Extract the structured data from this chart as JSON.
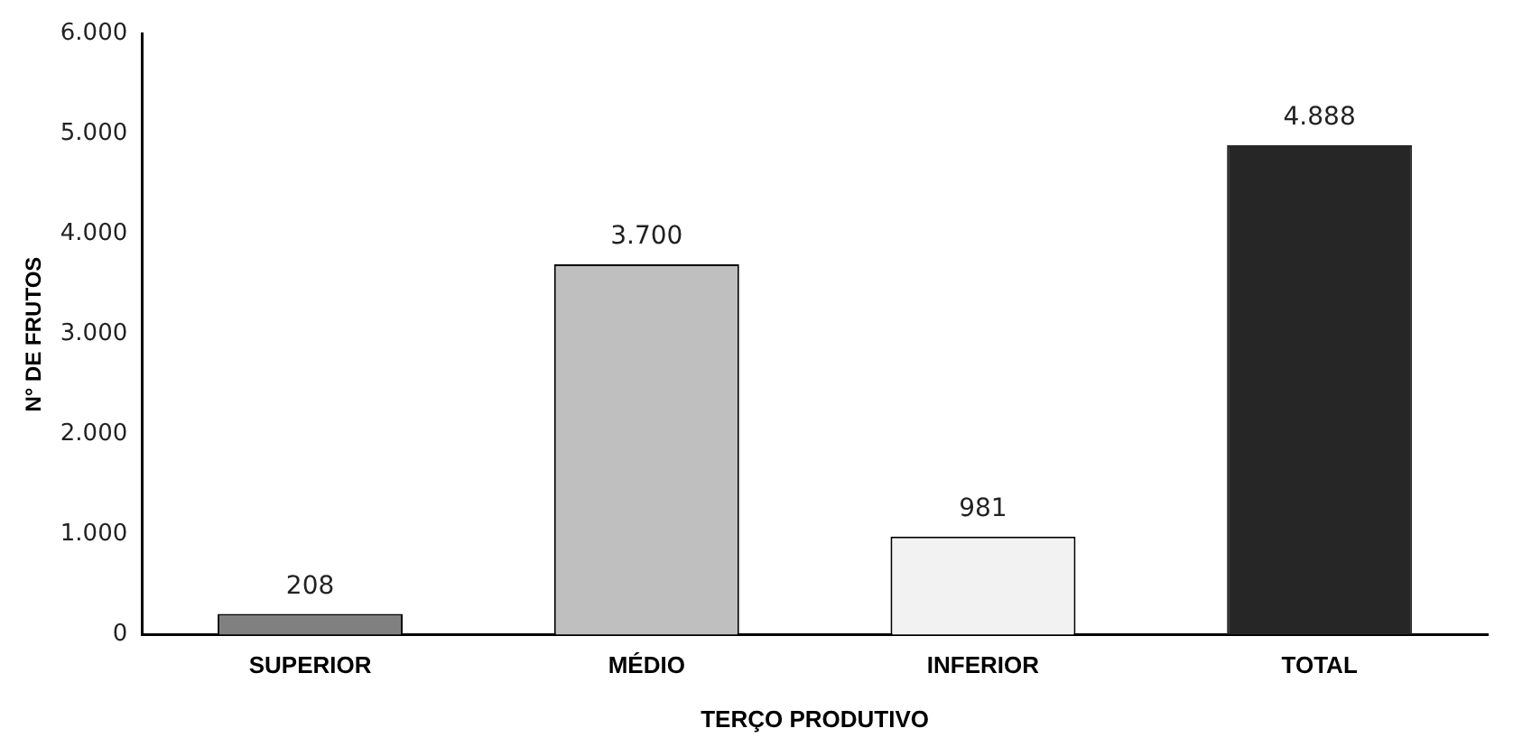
{
  "chart_data": {
    "type": "bar",
    "xlabel": "TERÇO PRODUTIVO",
    "ylabel": "N° DE FRUTOS",
    "categories": [
      "SUPERIOR",
      "MÉDIO",
      "INFERIOR",
      "TOTAL"
    ],
    "values": [
      208,
      3700,
      981,
      4888
    ],
    "colors": [
      "#808080",
      "#bfbfbf",
      "#f2f2f2",
      "#262626"
    ],
    "value_labels": [
      "208",
      "3.700",
      "981",
      "4.888"
    ],
    "ylim": [
      0,
      6000
    ],
    "yticks": [
      {
        "value": 0,
        "label": "0"
      },
      {
        "value": 1000,
        "label": "1.000"
      },
      {
        "value": 2000,
        "label": "2.000"
      },
      {
        "value": 3000,
        "label": "3.000"
      },
      {
        "value": 4000,
        "label": "4.000"
      },
      {
        "value": 5000,
        "label": "5.000"
      },
      {
        "value": 6000,
        "label": "6.000"
      }
    ],
    "grid": false,
    "legend": false
  }
}
